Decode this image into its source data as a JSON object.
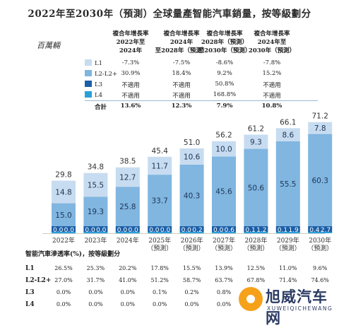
{
  "title": "2022年至2030年（預測）全球量產智能汽車銷量，按等級劃分",
  "unit": "百萬輛",
  "cagr_headers": [
    "複合年增長率\n2022年至\n2024年",
    "複合年增長率\n2024年\n至2028年（預測）",
    "複合年增長率\n2028年（預測）\n至2030年（預測）",
    "複合年增長率\n2024年至\n2030年（預測）"
  ],
  "cagr_rows": [
    {
      "label": "L1",
      "color": "#c7dcf0",
      "values": [
        "-7.3%",
        "-7.5%",
        "-8.6%",
        "-7.8%"
      ]
    },
    {
      "label": "L2-L2+",
      "color": "#80b6e0",
      "values": [
        "30.9%",
        "18.4%",
        "9.2%",
        "15.2%"
      ]
    },
    {
      "label": "L3",
      "color": "#1b5fa8",
      "values": [
        "不適用",
        "不適用",
        "50.8%",
        "不適用"
      ]
    },
    {
      "label": "L4",
      "color": "#2a9fd8",
      "values": [
        "不適用",
        "不適用",
        "168.8%",
        "不適用"
      ]
    }
  ],
  "cagr_total": {
    "label": "合計",
    "values": [
      "13.6%",
      "12.3%",
      "7.9%",
      "10.8%"
    ]
  },
  "chart_data": {
    "type": "bar",
    "stacked": true,
    "title": "2022年至2030年（預測）全球量產智能汽車銷量，按等級劃分",
    "ylabel": "百萬輛",
    "categories": [
      "2022年",
      "2023年",
      "2024年",
      "2025年\n（預測）",
      "2026年\n（預測）",
      "2027年\n（預測）",
      "2028年\n（預測）",
      "2029年\n（預測）",
      "2030年\n（預測）"
    ],
    "series": [
      {
        "name": "L4",
        "color": "#2a9fd8",
        "values": [
          0.0,
          0.0,
          0.0,
          0.0,
          0.0,
          0.0,
          0.1,
          0.1,
          0.4
        ],
        "labels": [
          "0.0",
          "0.0",
          "0.0",
          "0.0",
          "0.0",
          "0.0",
          "0.1",
          "0.1",
          "0.4"
        ]
      },
      {
        "name": "L3",
        "color": "#1b5fa8",
        "values": [
          0.0,
          0.0,
          0.0,
          0.0,
          0.2,
          0.6,
          1.2,
          1.9,
          2.7
        ],
        "labels": [
          "0.0",
          "0.0",
          "0.0",
          "0.0",
          "0.2",
          "0.6",
          "1.2",
          "1.9",
          "2.7"
        ]
      },
      {
        "name": "L2-L2+",
        "color": "#80b6e0",
        "values": [
          15.0,
          19.3,
          25.8,
          33.7,
          40.3,
          45.6,
          50.6,
          55.5,
          60.3
        ]
      },
      {
        "name": "L1",
        "color": "#c7dcf0",
        "values": [
          14.8,
          15.5,
          12.7,
          11.7,
          10.6,
          10.0,
          9.3,
          8.6,
          7.8
        ]
      }
    ],
    "totals": [
      29.8,
      34.8,
      38.5,
      45.4,
      51.0,
      56.2,
      61.2,
      66.1,
      71.2
    ],
    "ylim": [
      0,
      75
    ],
    "grid": false
  },
  "penetration": {
    "title": "智能汽車滲透率(%)，按等級劃分",
    "rows": [
      {
        "label": "L1",
        "values": [
          "26.5%",
          "25.3%",
          "20.2%",
          "17.8%",
          "15.5%",
          "13.9%",
          "12.5%",
          "11.0%",
          "9.6%"
        ]
      },
      {
        "label": "L2-L2+",
        "values": [
          "27.0%",
          "31.7%",
          "41.0%",
          "51.2%",
          "58.7%",
          "63.7%",
          "67.8%",
          "71.4%",
          "74.6%"
        ]
      },
      {
        "label": "L3",
        "values": [
          "0.0%",
          "0.0%",
          "0.0%",
          "0.1%",
          "0.2%",
          "0.8%",
          "",
          "",
          ""
        ]
      },
      {
        "label": "L4",
        "values": [
          "0.0%",
          "0.0%",
          "0.0%",
          "0.0%",
          "0.0%",
          "0.0%",
          "",
          "",
          ""
        ]
      }
    ]
  },
  "watermark": {
    "main": "旭威汽车网",
    "sub": "XUWEIQICHEWANG"
  }
}
